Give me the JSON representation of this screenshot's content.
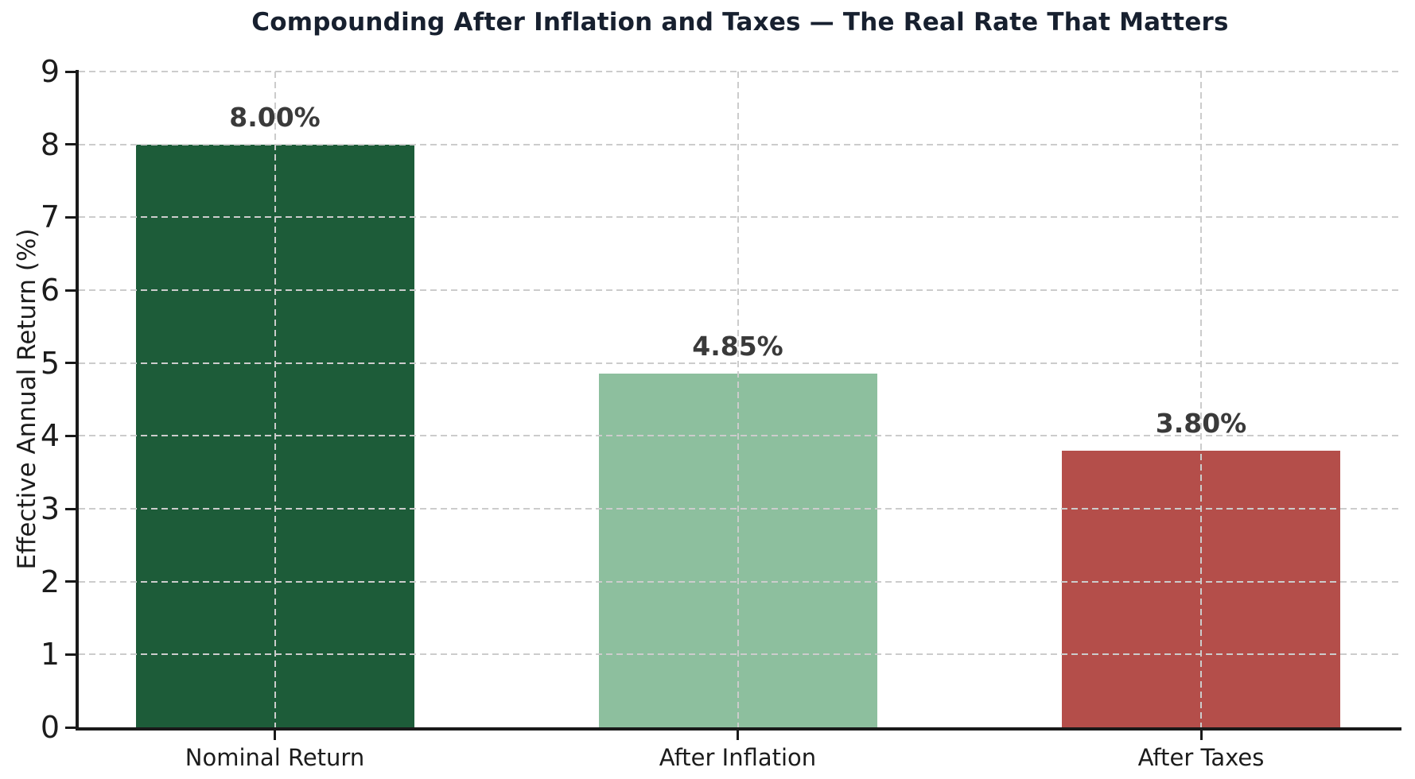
{
  "chart_data": {
    "type": "bar",
    "title": "Compounding After Inflation and Taxes — The Real Rate That Matters",
    "categories": [
      "Nominal Return",
      "After Inflation",
      "After Taxes"
    ],
    "values": [
      8.0,
      4.85,
      3.8
    ],
    "bar_labels": [
      "8.00%",
      "4.85%",
      "3.80%"
    ],
    "bar_colors": [
      "#1d5c39",
      "#8dbf9e",
      "#b44e4a"
    ],
    "xlabel": "",
    "ylabel": "Effective Annual Return (%)",
    "ylim": [
      0,
      9
    ],
    "yticks": [
      0,
      1,
      2,
      3,
      4,
      5,
      6,
      7,
      8,
      9
    ],
    "grid": {
      "horizontal": true,
      "vertical": true,
      "style": "dashed",
      "on_top_of_bars": true
    },
    "legend": null
  },
  "colors": {
    "background": "#ffffff",
    "title": "#17202f",
    "axis_spine": "#1a1a1a",
    "tick_label": "#1c1c1c",
    "gridline": "#cccccc",
    "bar_value_label": "#3a3a3a",
    "bar_nominal_return": "#1d5c39",
    "bar_after_inflation": "#8dbf9e",
    "bar_after_taxes": "#b44e4a"
  }
}
